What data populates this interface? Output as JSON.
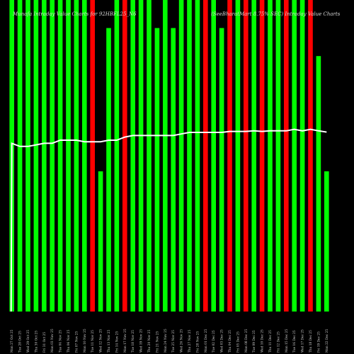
{
  "chart_data": {
    "type": "bar",
    "title": "Munafa Intraday Value Charts for 92HBFL25_N6",
    "subtitle": "(SeeBharatMart 8.75% SEC) Intraday Value Charts",
    "up_color": "#00ff00",
    "down_color": "#ff0000",
    "line_color": "#ffffff",
    "ylim": [
      0,
      1
    ],
    "categories": [
      "Mon 27 Oct 2025",
      "Tue 28 Oct 2025",
      "Wed 29 Oct 2025",
      "Thu 30 Oct 2025",
      "Fri 31 Oct 2025",
      "Mon 03 Nov 2025",
      "Tue 04 Nov 2025",
      "Thu 06 Nov 2025",
      "Fri 07 Nov 2025",
      "Mon 10 Nov 2025",
      "Tue 11 Nov 2025",
      "Wed 12 Nov 2025",
      "Thu 13 Nov 2025",
      "Fri 14 Nov 2025",
      "Mon 17 Nov 2025",
      "Tue 18 Nov 2025",
      "Wed 19 Nov 2025",
      "Thu 20 Nov 2025",
      "Fri 21 Nov 2025",
      "Mon 24 Nov 2025",
      "Tue 25 Nov 2025",
      "Wed 26 Nov 2025",
      "Thu 27 Nov 2025",
      "Fri 28 Nov 2025",
      "Mon 01 Dec 2025",
      "Tue 02 Dec 2025",
      "Wed 03 Dec 2025",
      "Thu 04 Dec 2025",
      "Fri 05 Dec 2025",
      "Mon 08 Dec 2025",
      "Tue 09 Dec 2025",
      "Wed 10 Dec 2025",
      "Thu 11 Dec 2025",
      "Fri 12 Dec 2025",
      "Mon 15 Dec 2025",
      "Tue 16 Dec 2025",
      "Wed 17 Dec 2025",
      "Thu 18 Dec 2025",
      "Fri 19 Dec 2025",
      "Mon 22 Dec 2025"
    ],
    "tick_labels": [
      "Mon 27 Oct 25",
      "Tue 28 Oct 25",
      "Wed 29 Oct 25",
      "Thu 30 Oct 25",
      "Fri 31 Oct 25",
      "Mon 03 Nov 25",
      "Tue 04 Nov 25",
      "Thu 06 Nov 25",
      "Fri 07 Nov 25",
      "Mon 10 Nov 25",
      "Tue 11 Nov 25",
      "Wed 12 Nov 25",
      "Thu 13 Nov 25",
      "Fri 14 Nov 25",
      "Mon 17 Nov 25",
      "Tue 18 Nov 25",
      "Wed 19 Nov 25",
      "Thu 20 Nov 25",
      "Fri 21 Nov 25",
      "Mon 24 Nov 25",
      "Tue 25 Nov 25",
      "Wed 26 Nov 25",
      "Thu 27 Nov 25",
      "Fri 28 Nov 25",
      "Mon 01 Dec 25",
      "Tue 02 Dec 25",
      "Wed 03 Dec 25",
      "Thu 04 Dec 25",
      "Fri 05 Dec 25",
      "Mon 08 Dec 25",
      "Tue 09 Dec 25",
      "Wed 10 Dec 25",
      "Thu 11 Dec 25",
      "Fri 12 Dec 25",
      "Mon 15 Dec 25",
      "Tue 16 Dec 25",
      "Wed 17 Dec 25",
      "Thu 18 Dec 25",
      "Fri 19 Dec 25",
      "Mon 22 Dec 25"
    ],
    "series": [
      {
        "values": [
          1,
          1,
          1,
          1,
          1,
          1,
          1,
          1,
          1,
          1,
          1,
          0.45,
          0.91,
          1,
          1,
          1,
          1,
          1,
          0.91,
          1,
          0.91,
          1,
          1,
          1,
          1,
          1,
          0.91,
          1,
          1,
          1,
          1,
          1,
          1,
          1,
          1,
          1,
          1,
          1,
          0.82,
          0.45
        ],
        "directions": [
          "up",
          "up",
          "up",
          "up",
          "up",
          "up",
          "up",
          "up",
          "up",
          "up",
          "down",
          "up",
          "up",
          "up",
          "down",
          "up",
          "up",
          "up",
          "up",
          "up",
          "up",
          "up",
          "up",
          "up",
          "down",
          "up",
          "up",
          "down",
          "up",
          "down",
          "up",
          "down",
          "up",
          "up",
          "down",
          "up",
          "up",
          "down",
          "up",
          "up"
        ]
      },
      {
        "values": [
          0.54,
          0.53,
          0.53,
          0.535,
          0.54,
          0.54,
          0.55,
          0.55,
          0.55,
          0.545,
          0.545,
          0.545,
          0.55,
          0.55,
          0.56,
          0.565,
          0.565,
          0.565,
          0.565,
          0.565,
          0.565,
          0.57,
          0.575,
          0.575,
          0.575,
          0.575,
          0.575,
          0.578,
          0.578,
          0.578,
          0.58,
          0.578,
          0.58,
          0.58,
          0.58,
          0.585,
          0.58,
          0.585,
          0.58,
          0.576
        ]
      }
    ]
  }
}
